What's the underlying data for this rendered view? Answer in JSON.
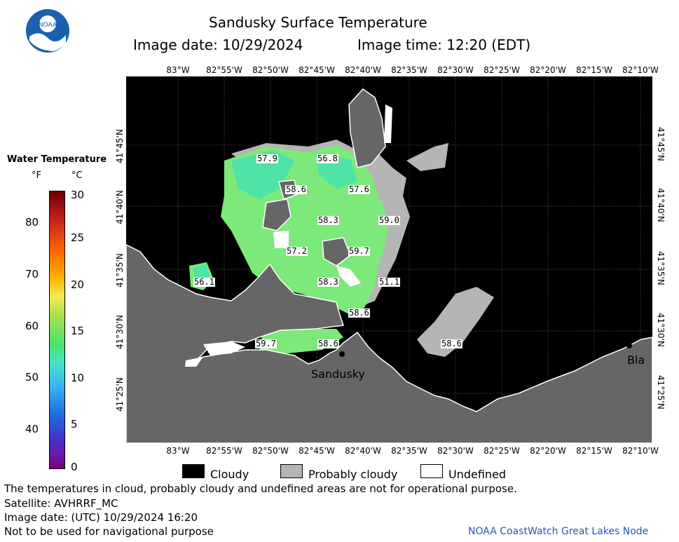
{
  "header": {
    "title": "Sandusky Surface Temperature",
    "image_date": "Image date: 10/29/2024",
    "image_time": "Image time: 12:20 (EDT)"
  },
  "logo": {
    "text": "NOAA"
  },
  "colorbar": {
    "title": "Water Temperature",
    "unit_f": "°F",
    "unit_c": "°C",
    "f_ticks": [
      "80",
      "70",
      "60",
      "50",
      "40"
    ],
    "c_ticks": [
      "30",
      "25",
      "20",
      "15",
      "10",
      "5",
      "0"
    ]
  },
  "map": {
    "lon_labels": [
      "83°W",
      "82°55'W",
      "82°50'W",
      "82°45'W",
      "82°40'W",
      "82°35'W",
      "82°30'W",
      "82°25'W",
      "82°20'W",
      "82°15'W",
      "82°10'W"
    ],
    "lat_labels": [
      "41°45'N",
      "41°40'N",
      "41°35'N",
      "41°30'N",
      "41°25'N"
    ],
    "place_sandusky": "Sandusky",
    "place_bla": "Bla",
    "readings": [
      "57.9",
      "56.8",
      "58.6",
      "57.6",
      "58.3",
      "59.0",
      "57.2",
      "59.7",
      "56.1",
      "58.3",
      "51.1",
      "58.6",
      "59.7",
      "58.6",
      "58.6"
    ]
  },
  "legend": {
    "cloudy": "Cloudy",
    "probably_cloudy": "Probably cloudy",
    "undefined": "Undefined"
  },
  "footer": {
    "line1": "The temperatures in cloud, probably cloudy and undefined areas are not for operational purpose.",
    "line2": "Satellite: AVHRRF_MC",
    "line3": "Image date: (UTC) 10/29/2024  16:20",
    "line4": "Not to be used for navigational purpose",
    "credit": "NOAA CoastWatch Great Lakes Node"
  }
}
